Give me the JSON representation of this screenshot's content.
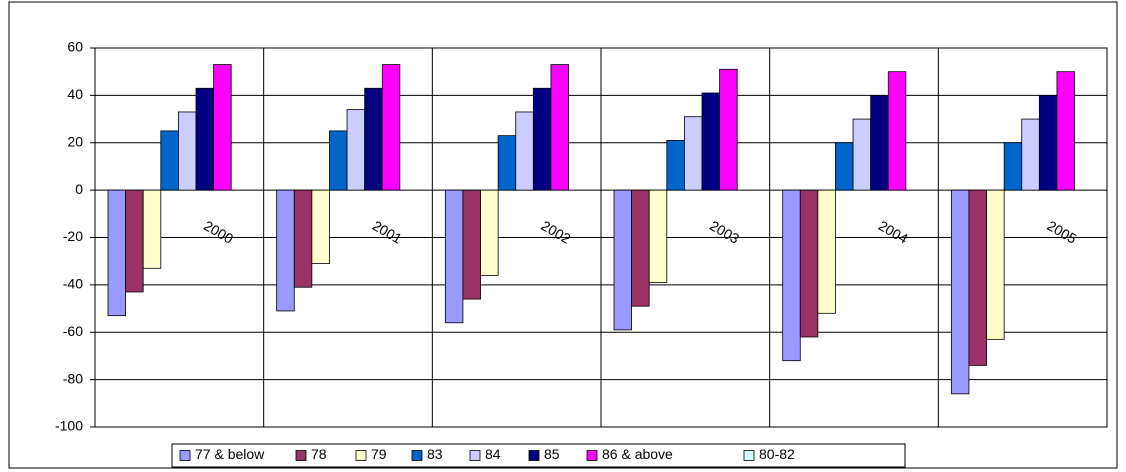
{
  "chart_data": {
    "type": "bar",
    "categories": [
      "2000",
      "2001",
      "2002",
      "2003",
      "2004",
      "2005"
    ],
    "series": [
      {
        "name": "77 & below",
        "color": "#9999ff",
        "values": [
          -53,
          -51,
          -56,
          -59,
          -72,
          -86
        ]
      },
      {
        "name": "78",
        "color": "#993366",
        "values": [
          -43,
          -41,
          -46,
          -49,
          -62,
          -74
        ]
      },
      {
        "name": "79",
        "color": "#ffffcc",
        "values": [
          -33,
          -31,
          -36,
          -39,
          -52,
          -63
        ]
      },
      {
        "name": "83",
        "color": "#0066cc",
        "values": [
          25,
          25,
          23,
          21,
          20,
          20
        ]
      },
      {
        "name": "84",
        "color": "#ccccff",
        "values": [
          33,
          34,
          33,
          31,
          30,
          30
        ]
      },
      {
        "name": "85",
        "color": "#000080",
        "values": [
          43,
          43,
          43,
          41,
          40,
          40
        ]
      },
      {
        "name": "86 & above",
        "color": "#ff00ff",
        "values": [
          53,
          53,
          53,
          51,
          50,
          50
        ]
      },
      {
        "name": "80-82",
        "color": "#ccffff",
        "values": [
          null,
          null,
          null,
          null,
          null,
          null
        ]
      }
    ],
    "ylim": [
      -100,
      60
    ],
    "yticks": [
      -100,
      -80,
      -60,
      -40,
      -20,
      0,
      20,
      40,
      60
    ],
    "grid": true,
    "legend": "bottom"
  }
}
